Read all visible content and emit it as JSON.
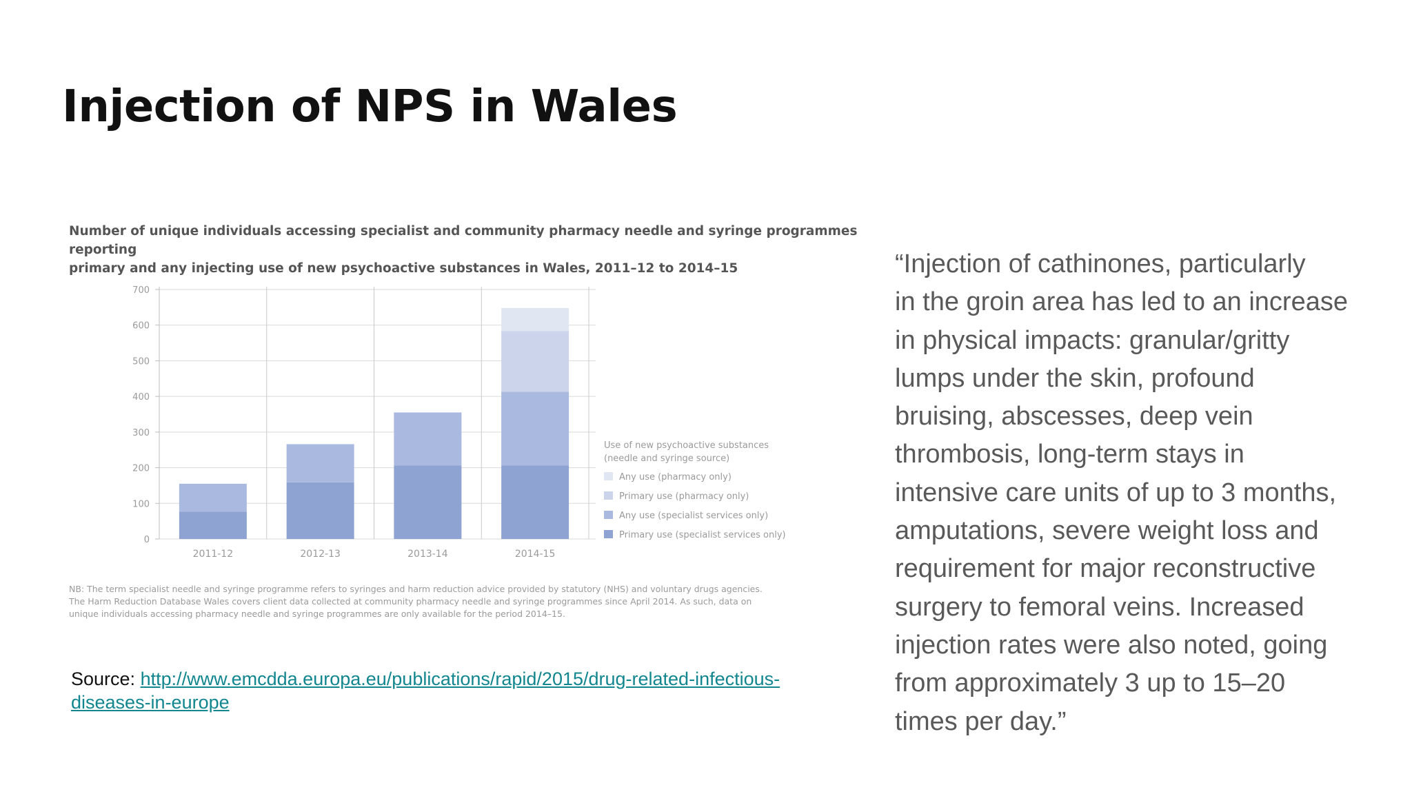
{
  "slide": {
    "title": "Injection of NPS in Wales"
  },
  "figure": {
    "title_lines": [
      "Number of unique individuals accessing specialist and community pharmacy needle and syringe programmes reporting",
      "primary and any injecting use of new psychoactive substances in Wales, 2011–12 to 2014–15"
    ],
    "note_lines": [
      "NB: The term specialist needle and syringe programme refers to syringes and harm reduction advice provided by statutory (NHS) and voluntary drugs agencies.",
      "The Harm Reduction Database Wales covers client data collected at community pharmacy needle and syringe programmes since April 2014. As such, data on",
      "unique individuals accessing pharmacy needle and syringe programmes are only available for the period 2014–15."
    ]
  },
  "chart_data": {
    "type": "bar",
    "stacked": true,
    "title": "Number of unique individuals accessing specialist and community pharmacy needle and syringe programmes reporting primary and any injecting use of new psychoactive substances in Wales, 2011–12 to 2014–15",
    "categories": [
      "2011-12",
      "2012-13",
      "2013-14",
      "2014-15"
    ],
    "series": [
      {
        "name": "Primary use (specialist services only)",
        "values": [
          77,
          159,
          206,
          206
        ],
        "color": "#8ea3d1"
      },
      {
        "name": "Any use (specialist services only)",
        "values": [
          78,
          107,
          149,
          207
        ],
        "color": "#aab9df"
      },
      {
        "name": "Primary use (pharmacy only)",
        "values": [
          0,
          0,
          0,
          170
        ],
        "color": "#cbd4eb"
      },
      {
        "name": "Any use (pharmacy only)",
        "values": [
          0,
          0,
          0,
          65
        ],
        "color": "#e1e6f3"
      }
    ],
    "legend_title": [
      "Use of new psychoactive substances",
      "(needle and syringe source)"
    ],
    "legend_order": [
      3,
      2,
      1,
      0
    ],
    "legend_position": "right",
    "y_ticks": [
      0,
      100,
      200,
      300,
      400,
      500,
      600,
      700
    ],
    "ylim": [
      0,
      700
    ],
    "xlabel": "",
    "ylabel": "",
    "grid": true
  },
  "source": {
    "label": "Source:",
    "link_line1": "http://www.emcdda.europa.eu/publications/rapid/2015/drug-related-infectious-",
    "link_line2": "diseases-in-europe"
  },
  "quote": {
    "lines": [
      "“Injection of cathinones, particularly",
      "in the groin area has led to an increase",
      "in physical impacts: granular/gritty",
      "lumps under the skin, profound",
      "bruising, abscesses, deep vein",
      "thrombosis, long-term stays in",
      "intensive care units of up to 3 months,",
      "amputations, severe weight loss and",
      "requirement for major reconstructive",
      "surgery to femoral veins. Increased",
      "injection rates were also noted, going",
      "from approximately 3 up to 15–20",
      "times per day.”"
    ]
  }
}
